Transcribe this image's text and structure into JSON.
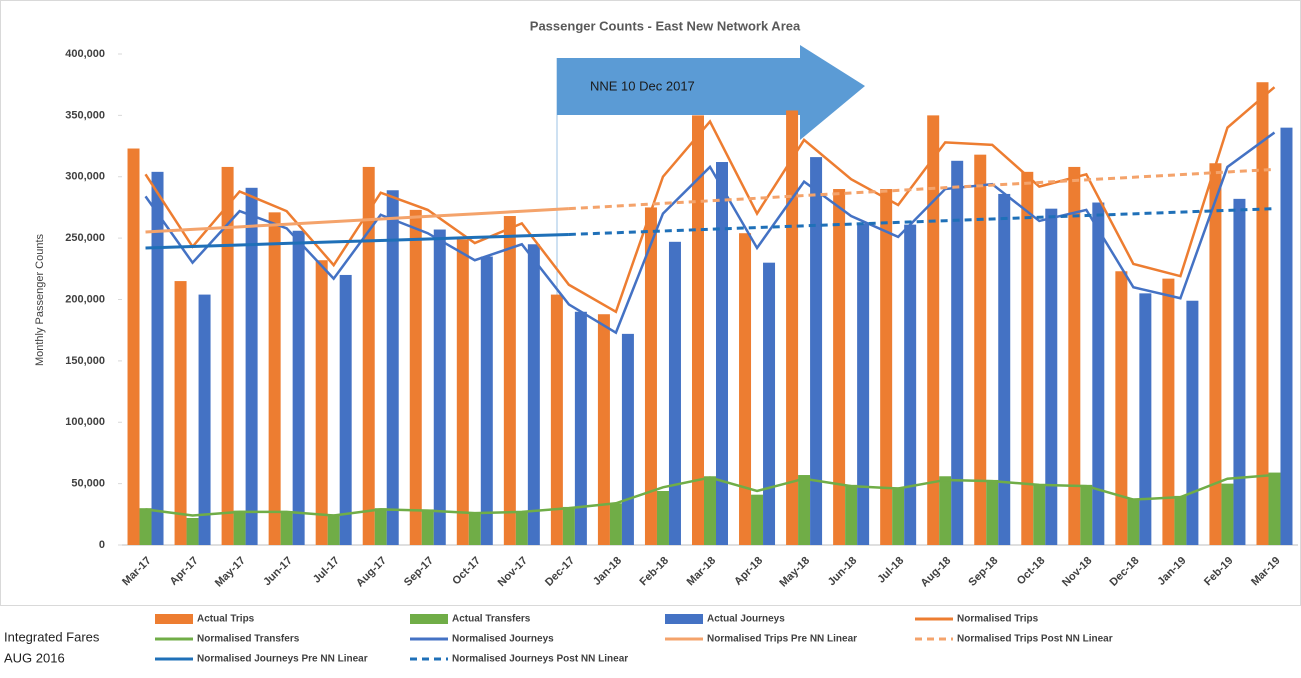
{
  "chart_data": {
    "type": "bar",
    "title": "Passenger Counts - East New Network Area",
    "y_label": "Monthly Passenger Counts",
    "annotations": [
      "NNE 10 Dec 2017",
      "Integrated Fares",
      "AUG 2016"
    ],
    "categories": [
      "Mar-17",
      "Apr-17",
      "May-17",
      "Jun-17",
      "Jul-17",
      "Aug-17",
      "Sep-17",
      "Oct-17",
      "Nov-17",
      "Dec-17",
      "Jan-18",
      "Feb-18",
      "Mar-18",
      "Apr-18",
      "May-18",
      "Jun-18",
      "Jul-18",
      "Aug-18",
      "Sep-18",
      "Oct-18",
      "Nov-18",
      "Dec-18",
      "Jan-19",
      "Feb-19",
      "Mar-19"
    ],
    "ylim": [
      0,
      400000
    ],
    "yticks": [
      0,
      {
        "value": 50000,
        "label": "50,000"
      },
      {
        "value": 100000,
        "label": "100,000"
      },
      {
        "value": 150000,
        "label": "150,000"
      },
      {
        "value": 200000,
        "label": "200,000"
      },
      {
        "value": 250000,
        "label": "250,000"
      },
      {
        "value": 300000,
        "label": "300,000"
      },
      {
        "value": 350000,
        "label": "350,000"
      },
      {
        "value": 400000,
        "label": "400,000"
      }
    ],
    "grid": false,
    "legend": "bottom",
    "series": [
      {
        "name": "Actual Trips",
        "kind": "bar",
        "color": "#ed7d31",
        "values": [
          323000,
          215000,
          308000,
          271000,
          232000,
          308000,
          273000,
          249000,
          268000,
          204000,
          188000,
          275000,
          350000,
          254000,
          354000,
          290000,
          290000,
          350000,
          318000,
          304000,
          308000,
          223000,
          217000,
          311000,
          377000
        ]
      },
      {
        "name": "Actual Transfers",
        "kind": "bar",
        "color": "#70ad47",
        "values": [
          30000,
          22000,
          28000,
          27000,
          25000,
          30000,
          29000,
          26000,
          27000,
          31000,
          34000,
          44000,
          56000,
          41000,
          57000,
          49000,
          47000,
          56000,
          53000,
          49000,
          49000,
          38000,
          40000,
          50000,
          59000
        ]
      },
      {
        "name": "Actual Journeys",
        "kind": "bar",
        "color": "#4472c4",
        "values": [
          304000,
          204000,
          291000,
          256000,
          220000,
          289000,
          257000,
          235000,
          245000,
          190000,
          172000,
          247000,
          312000,
          230000,
          316000,
          262000,
          261000,
          313000,
          286000,
          274000,
          279000,
          205000,
          199000,
          282000,
          340000
        ]
      },
      {
        "name": "Normalised Trips",
        "kind": "line",
        "color": "#ed7d31",
        "values": [
          302000,
          243000,
          288000,
          272000,
          228000,
          287000,
          273000,
          246000,
          262000,
          212000,
          190000,
          300000,
          345000,
          270000,
          330000,
          298000,
          277000,
          328000,
          326000,
          292000,
          302000,
          229000,
          219000,
          340000,
          373000
        ]
      },
      {
        "name": "Normalised Transfers",
        "kind": "line",
        "color": "#70ad47",
        "values": [
          29000,
          24000,
          27000,
          27000,
          24000,
          29000,
          28000,
          26000,
          27000,
          30000,
          34000,
          47000,
          55000,
          44000,
          54000,
          48000,
          46000,
          53000,
          52000,
          49000,
          48000,
          37000,
          39000,
          54000,
          57000
        ]
      },
      {
        "name": "Normalised Journeys",
        "kind": "line",
        "color": "#4472c4",
        "values": [
          284000,
          230000,
          272000,
          258000,
          217000,
          269000,
          254000,
          232000,
          245000,
          196000,
          173000,
          270000,
          308000,
          242000,
          296000,
          268000,
          251000,
          290000,
          294000,
          264000,
          273000,
          210000,
          201000,
          308000,
          336000
        ]
      },
      {
        "name": "Normalised Trips Pre NN Linear",
        "kind": "line",
        "color": "#f4a36b",
        "values": [
          255000,
          257100,
          259200,
          261300,
          263400,
          265600,
          267700,
          269800,
          271900,
          274000,
          null,
          null,
          null,
          null,
          null,
          null,
          null,
          null,
          null,
          null,
          null,
          null,
          null,
          null,
          null
        ]
      },
      {
        "name": "Normalised Trips Post NN Linear",
        "kind": "line",
        "dash": true,
        "color": "#f4a36b",
        "values": [
          null,
          null,
          null,
          null,
          null,
          null,
          null,
          null,
          null,
          274000,
          276100,
          278300,
          280400,
          282500,
          284700,
          286800,
          288900,
          291100,
          293200,
          295300,
          297500,
          299600,
          301700,
          303900,
          306000
        ]
      },
      {
        "name": "Normalised Journeys Pre NN Linear",
        "kind": "line",
        "color": "#1f70b8",
        "values": [
          242000,
          243200,
          244400,
          245700,
          246900,
          248100,
          249300,
          250600,
          251800,
          253000,
          null,
          null,
          null,
          null,
          null,
          null,
          null,
          null,
          null,
          null,
          null,
          null,
          null,
          null,
          null
        ]
      },
      {
        "name": "Normalised Journeys Post NN Linear",
        "kind": "line",
        "dash": true,
        "color": "#1f70b8",
        "values": [
          null,
          null,
          null,
          null,
          null,
          null,
          null,
          null,
          null,
          253000,
          254400,
          255800,
          257200,
          258600,
          260000,
          261400,
          262800,
          264200,
          265600,
          267000,
          268400,
          269800,
          271200,
          272600,
          274000
        ]
      }
    ]
  }
}
